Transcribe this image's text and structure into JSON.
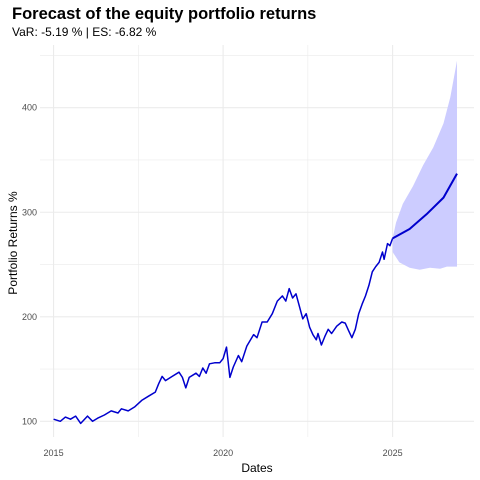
{
  "chart_data": {
    "type": "line",
    "title": "Forecast of the equity portfolio returns",
    "subtitle": "VaR: -5.19 % | ES: -6.82 %",
    "xlabel": "Dates",
    "ylabel": "Portfolio Returns %",
    "x_ticks": [
      "2015",
      "2020",
      "2025"
    ],
    "y_ticks": [
      "100",
      "200",
      "300",
      "400"
    ],
    "xlim": [
      2014.6,
      2027.4
    ],
    "ylim": [
      85,
      460
    ],
    "grid": true,
    "colors": {
      "line": "#0000cd",
      "band": "#ccccff",
      "grid": "#ebebeb"
    },
    "series": [
      {
        "kind": "historical",
        "points": [
          [
            2015.0,
            102
          ],
          [
            2015.2,
            100
          ],
          [
            2015.35,
            104
          ],
          [
            2015.5,
            102
          ],
          [
            2015.65,
            105
          ],
          [
            2015.8,
            98
          ],
          [
            2016.0,
            105
          ],
          [
            2016.15,
            100
          ],
          [
            2016.3,
            103
          ],
          [
            2016.5,
            106
          ],
          [
            2016.7,
            110
          ],
          [
            2016.9,
            108
          ],
          [
            2017.0,
            112
          ],
          [
            2017.2,
            110
          ],
          [
            2017.4,
            114
          ],
          [
            2017.6,
            120
          ],
          [
            2017.8,
            124
          ],
          [
            2018.0,
            128
          ],
          [
            2018.1,
            136
          ],
          [
            2018.2,
            143
          ],
          [
            2018.3,
            139
          ],
          [
            2018.5,
            143
          ],
          [
            2018.7,
            147
          ],
          [
            2018.8,
            142
          ],
          [
            2018.9,
            132
          ],
          [
            2019.0,
            142
          ],
          [
            2019.2,
            146
          ],
          [
            2019.3,
            143
          ],
          [
            2019.4,
            151
          ],
          [
            2019.5,
            146
          ],
          [
            2019.6,
            155
          ],
          [
            2019.75,
            156
          ],
          [
            2019.9,
            156
          ],
          [
            2020.0,
            160
          ],
          [
            2020.1,
            171
          ],
          [
            2020.2,
            142
          ],
          [
            2020.3,
            152
          ],
          [
            2020.45,
            163
          ],
          [
            2020.55,
            157
          ],
          [
            2020.7,
            172
          ],
          [
            2020.9,
            183
          ],
          [
            2021.0,
            180
          ],
          [
            2021.15,
            195
          ],
          [
            2021.3,
            195
          ],
          [
            2021.45,
            203
          ],
          [
            2021.6,
            215
          ],
          [
            2021.75,
            220
          ],
          [
            2021.85,
            215
          ],
          [
            2021.95,
            227
          ],
          [
            2022.05,
            218
          ],
          [
            2022.15,
            222
          ],
          [
            2022.25,
            210
          ],
          [
            2022.35,
            198
          ],
          [
            2022.45,
            203
          ],
          [
            2022.55,
            190
          ],
          [
            2022.65,
            183
          ],
          [
            2022.75,
            178
          ],
          [
            2022.8,
            184
          ],
          [
            2022.9,
            173
          ],
          [
            2023.0,
            181
          ],
          [
            2023.1,
            188
          ],
          [
            2023.2,
            184
          ],
          [
            2023.35,
            191
          ],
          [
            2023.5,
            195
          ],
          [
            2023.6,
            194
          ],
          [
            2023.7,
            187
          ],
          [
            2023.8,
            180
          ],
          [
            2023.9,
            188
          ],
          [
            2024.0,
            203
          ],
          [
            2024.1,
            212
          ],
          [
            2024.2,
            220
          ],
          [
            2024.3,
            230
          ],
          [
            2024.4,
            243
          ],
          [
            2024.5,
            248
          ],
          [
            2024.6,
            252
          ],
          [
            2024.7,
            262
          ],
          [
            2024.75,
            255
          ],
          [
            2024.85,
            270
          ],
          [
            2024.92,
            268
          ],
          [
            2025.0,
            275
          ]
        ]
      },
      {
        "kind": "forecast",
        "points": [
          [
            2025.0,
            275
          ],
          [
            2025.5,
            284
          ],
          [
            2026.0,
            298
          ],
          [
            2026.5,
            314
          ],
          [
            2026.9,
            337
          ]
        ],
        "band_upper": [
          [
            2025.0,
            275
          ],
          [
            2025.1,
            290
          ],
          [
            2025.3,
            308
          ],
          [
            2025.6,
            325
          ],
          [
            2025.9,
            345
          ],
          [
            2026.2,
            362
          ],
          [
            2026.5,
            385
          ],
          [
            2026.7,
            410
          ],
          [
            2026.9,
            445
          ]
        ],
        "band_lower": [
          [
            2025.0,
            262
          ],
          [
            2025.2,
            252
          ],
          [
            2025.5,
            247
          ],
          [
            2025.8,
            245
          ],
          [
            2026.1,
            247
          ],
          [
            2026.4,
            246
          ],
          [
            2026.6,
            248
          ],
          [
            2026.9,
            248
          ]
        ]
      }
    ]
  }
}
